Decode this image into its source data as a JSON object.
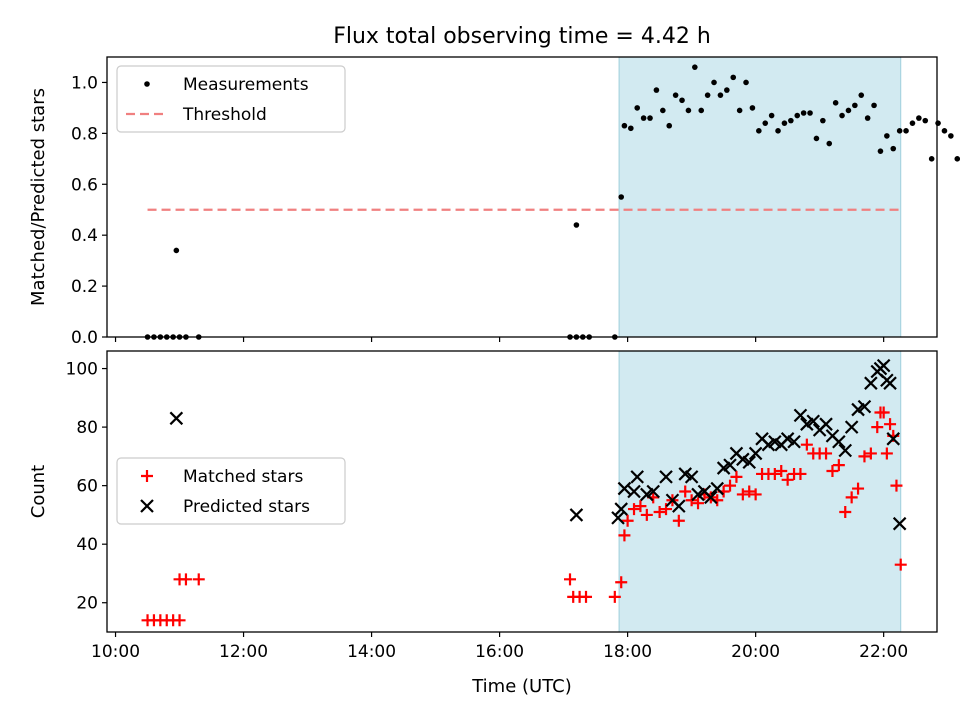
{
  "figure": {
    "title": "Flux total observing time = 4.42 h",
    "xlabel": "Time (UTC)",
    "shade_color": "#add8e6",
    "shade_span": [
      "17:52",
      "22:16"
    ]
  },
  "chart_data": [
    {
      "type": "scatter",
      "ylabel": "Matched/Predicted stars",
      "xlim": [
        "09:52",
        "22:50"
      ],
      "ylim": [
        0,
        1.1
      ],
      "yticks": [
        "0.0",
        "0.2",
        "0.4",
        "0.6",
        "0.8",
        "1.0"
      ],
      "grid": false,
      "legend_position": "upper-left",
      "series": [
        {
          "name": "Measurements",
          "marker": "dot",
          "color": "#000000",
          "points": [
            [
              "10:30",
              0
            ],
            [
              "10:36",
              0
            ],
            [
              "10:42",
              0
            ],
            [
              "10:48",
              0
            ],
            [
              "10:54",
              0
            ],
            [
              "10:57",
              0.34
            ],
            [
              "11:00",
              0
            ],
            [
              "11:06",
              0
            ],
            [
              "11:18",
              0
            ],
            [
              "17:06",
              0
            ],
            [
              "17:12",
              0.44
            ],
            [
              "17:12",
              0
            ],
            [
              "17:18",
              0
            ],
            [
              "17:24",
              0
            ],
            [
              "17:48",
              0
            ],
            [
              "17:54",
              0.55
            ],
            [
              "17:57",
              0.83
            ],
            [
              "18:03",
              0.82
            ],
            [
              "18:09",
              0.9
            ],
            [
              "18:15",
              0.86
            ],
            [
              "18:21",
              0.86
            ],
            [
              "18:27",
              0.97
            ],
            [
              "18:33",
              0.89
            ],
            [
              "18:39",
              0.83
            ],
            [
              "18:45",
              0.95
            ],
            [
              "18:51",
              0.93
            ],
            [
              "18:57",
              0.89
            ],
            [
              "19:03",
              1.06
            ],
            [
              "19:09",
              0.89
            ],
            [
              "19:15",
              0.95
            ],
            [
              "19:21",
              1.0
            ],
            [
              "19:27",
              0.95
            ],
            [
              "19:33",
              0.97
            ],
            [
              "19:39",
              1.02
            ],
            [
              "19:45",
              0.89
            ],
            [
              "19:51",
              1.0
            ],
            [
              "19:57",
              0.9
            ],
            [
              "20:03",
              0.81
            ],
            [
              "20:09",
              0.84
            ],
            [
              "20:15",
              0.87
            ],
            [
              "20:21",
              0.81
            ],
            [
              "20:27",
              0.84
            ],
            [
              "20:33",
              0.85
            ],
            [
              "20:39",
              0.87
            ],
            [
              "20:45",
              0.88
            ],
            [
              "20:51",
              0.88
            ],
            [
              "20:57",
              0.78
            ],
            [
              "21:03",
              0.85
            ],
            [
              "21:09",
              0.76
            ],
            [
              "21:15",
              0.92
            ],
            [
              "21:21",
              0.87
            ],
            [
              "21:27",
              0.89
            ],
            [
              "21:33",
              0.91
            ],
            [
              "21:39",
              0.95
            ],
            [
              "21:45",
              0.86
            ],
            [
              "21:51",
              0.91
            ],
            [
              "21:57",
              0.73
            ],
            [
              "22:03",
              0.79
            ],
            [
              "22:09",
              0.74
            ],
            [
              "22:15",
              0.81
            ],
            [
              "22:21",
              0.81
            ],
            [
              "22:27",
              0.84
            ],
            [
              "22:33",
              0.86
            ],
            [
              "22:39",
              0.85
            ],
            [
              "22:45",
              0.7
            ],
            [
              "22:51",
              0.84
            ],
            [
              "22:57",
              0.81
            ],
            [
              "23:03",
              0.79
            ],
            [
              "23:09",
              0.7
            ]
          ]
        },
        {
          "name": "Threshold",
          "marker": "dashed-line",
          "color": "#f08080",
          "points": [
            [
              "10:30",
              0.5
            ],
            [
              "22:16",
              0.5
            ]
          ]
        }
      ]
    },
    {
      "type": "scatter",
      "ylabel": "Count",
      "xlim": [
        "09:52",
        "22:50"
      ],
      "ylim": [
        10,
        106
      ],
      "yticks": [
        "20",
        "40",
        "60",
        "80",
        "100"
      ],
      "xticks": [
        "10:00",
        "12:00",
        "14:00",
        "16:00",
        "18:00",
        "20:00",
        "22:00"
      ],
      "grid": false,
      "legend_position": "center-left",
      "series": [
        {
          "name": "Matched stars",
          "marker": "plus",
          "color": "#ff0000",
          "points": [
            [
              "10:30",
              14
            ],
            [
              "10:36",
              14
            ],
            [
              "10:42",
              14
            ],
            [
              "10:48",
              14
            ],
            [
              "10:54",
              14
            ],
            [
              "11:00",
              14
            ],
            [
              "11:00",
              28
            ],
            [
              "11:06",
              28
            ],
            [
              "11:18",
              28
            ],
            [
              "17:06",
              28
            ],
            [
              "17:09",
              22
            ],
            [
              "17:15",
              22
            ],
            [
              "17:21",
              22
            ],
            [
              "17:48",
              22
            ],
            [
              "17:54",
              27
            ],
            [
              "17:57",
              43
            ],
            [
              "18:00",
              48
            ],
            [
              "18:06",
              52
            ],
            [
              "18:12",
              53
            ],
            [
              "18:18",
              50
            ],
            [
              "18:24",
              56
            ],
            [
              "18:30",
              51
            ],
            [
              "18:36",
              52
            ],
            [
              "18:42",
              55
            ],
            [
              "18:48",
              48
            ],
            [
              "18:54",
              58
            ],
            [
              "19:00",
              55
            ],
            [
              "19:06",
              54
            ],
            [
              "19:12",
              57
            ],
            [
              "19:18",
              56
            ],
            [
              "19:24",
              55
            ],
            [
              "19:30",
              58
            ],
            [
              "19:36",
              60
            ],
            [
              "19:42",
              63
            ],
            [
              "19:48",
              57
            ],
            [
              "19:54",
              58
            ],
            [
              "20:00",
              57
            ],
            [
              "20:06",
              64
            ],
            [
              "20:12",
              64
            ],
            [
              "20:18",
              64
            ],
            [
              "20:24",
              65
            ],
            [
              "20:30",
              62
            ],
            [
              "20:36",
              64
            ],
            [
              "20:42",
              64
            ],
            [
              "20:48",
              74
            ],
            [
              "20:54",
              71
            ],
            [
              "21:00",
              71
            ],
            [
              "21:06",
              71
            ],
            [
              "21:12",
              65
            ],
            [
              "21:18",
              67
            ],
            [
              "21:24",
              51
            ],
            [
              "21:30",
              56
            ],
            [
              "21:36",
              59
            ],
            [
              "21:42",
              70
            ],
            [
              "21:48",
              71
            ],
            [
              "21:54",
              80
            ],
            [
              "21:57",
              85
            ],
            [
              "22:00",
              85
            ],
            [
              "22:03",
              71
            ],
            [
              "22:06",
              81
            ],
            [
              "22:09",
              77
            ],
            [
              "22:12",
              60
            ],
            [
              "22:16",
              33
            ]
          ]
        },
        {
          "name": "Predicted stars",
          "marker": "x",
          "color": "#000000",
          "points": [
            [
              "10:57",
              83
            ],
            [
              "17:12",
              50
            ],
            [
              "17:51",
              49
            ],
            [
              "17:54",
              52
            ],
            [
              "17:57",
              59
            ],
            [
              "18:06",
              58
            ],
            [
              "18:09",
              63
            ],
            [
              "18:18",
              57
            ],
            [
              "18:24",
              58
            ],
            [
              "18:36",
              63
            ],
            [
              "18:42",
              55
            ],
            [
              "18:48",
              53
            ],
            [
              "18:54",
              64
            ],
            [
              "19:00",
              63
            ],
            [
              "19:06",
              57
            ],
            [
              "19:12",
              58
            ],
            [
              "19:18",
              56
            ],
            [
              "19:24",
              59
            ],
            [
              "19:30",
              66
            ],
            [
              "19:36",
              67
            ],
            [
              "19:42",
              71
            ],
            [
              "19:48",
              69
            ],
            [
              "19:54",
              68
            ],
            [
              "20:00",
              71
            ],
            [
              "20:06",
              76
            ],
            [
              "20:12",
              74
            ],
            [
              "20:18",
              75
            ],
            [
              "20:24",
              74
            ],
            [
              "20:30",
              76
            ],
            [
              "20:36",
              75
            ],
            [
              "20:42",
              84
            ],
            [
              "20:48",
              81
            ],
            [
              "20:54",
              82
            ],
            [
              "21:00",
              79
            ],
            [
              "21:06",
              81
            ],
            [
              "21:12",
              77
            ],
            [
              "21:18",
              75
            ],
            [
              "21:24",
              72
            ],
            [
              "21:30",
              80
            ],
            [
              "21:36",
              86
            ],
            [
              "21:42",
              87
            ],
            [
              "21:48",
              95
            ],
            [
              "21:54",
              99
            ],
            [
              "21:57",
              100
            ],
            [
              "22:00",
              101
            ],
            [
              "22:03",
              96
            ],
            [
              "22:06",
              95
            ],
            [
              "22:09",
              76
            ],
            [
              "22:15",
              47
            ]
          ]
        }
      ]
    }
  ]
}
